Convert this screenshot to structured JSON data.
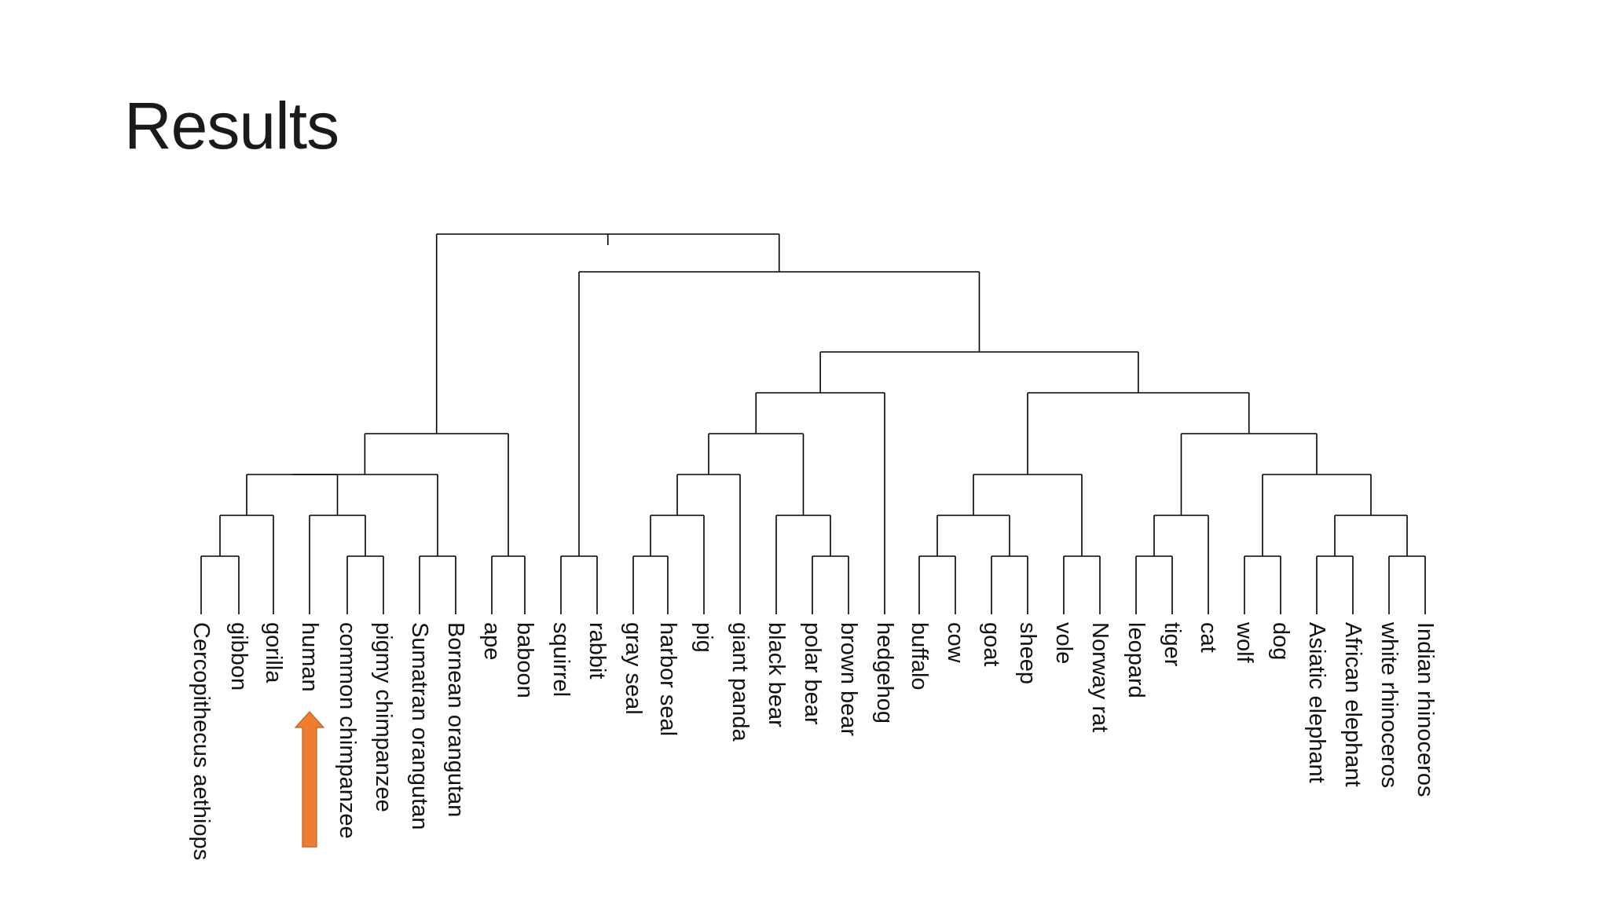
{
  "slide": {
    "title": "Results"
  },
  "dendrogram": {
    "leaves": [
      "Cercopithecus aethiops",
      "gibbon",
      "gorilla",
      "human",
      "common chimpanzee",
      "pigmy chimpanzee",
      "Sumatran orangutan",
      "Bornean orangutan",
      "ape",
      "baboon",
      "squirrel",
      "rabbit",
      "gray seal",
      "harbor seal",
      "pig",
      "giant panda",
      "black bear",
      "polar bear",
      "brown bear",
      "hedgehog",
      "buffalo",
      "cow",
      "goat",
      "sheep",
      "vole",
      "Norway rat",
      "leopard",
      "tiger",
      "cat",
      "wolf",
      "dog",
      "Asiatic elephant",
      "African elephant",
      "white rhinoceros",
      "Indian rhinoceros"
    ],
    "highlight": {
      "leaf": "human",
      "marker": "up-arrow",
      "color": "#ed7d31"
    },
    "line_color": "#000000"
  }
}
